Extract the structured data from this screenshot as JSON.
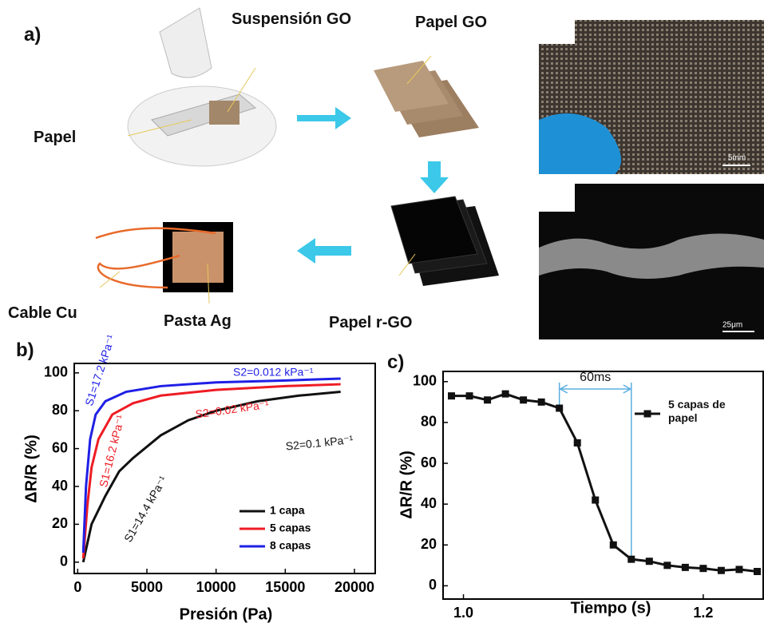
{
  "panel_a": {
    "label": "a)",
    "suspension": "Suspensión GO",
    "papel_go": "Papel GO",
    "papel": "Papel",
    "cable": "Cable Cu",
    "pasta": "Pasta Ag",
    "papel_rgo": "Papel r-GO",
    "scale_photo": "5mm",
    "scale_sem": "25μm"
  },
  "chart_data": [
    {
      "type": "line",
      "label": "b)",
      "x_label": "Presión (Pa)",
      "y_label": "ΔR/R (%)",
      "xlim": [
        -250,
        21500
      ],
      "ylim": [
        -6,
        105
      ],
      "xticks": [
        0,
        5000,
        10000,
        15000,
        20000
      ],
      "yticks": [
        0,
        20,
        40,
        60,
        80,
        100
      ],
      "legend": "lower right",
      "series": [
        {
          "name": "1 capa",
          "color": "#111111",
          "x": [
            400,
            1000,
            2000,
            3000,
            4000,
            6000,
            8000,
            10000,
            13000,
            16000,
            19000
          ],
          "values": [
            0,
            20,
            35,
            48,
            55,
            67,
            75,
            80,
            85,
            88,
            90
          ]
        },
        {
          "name": "5 capas",
          "color": "#ee1c24",
          "x": [
            400,
            700,
            1000,
            1500,
            2500,
            4000,
            6000,
            10000,
            15000,
            19000
          ],
          "values": [
            2,
            30,
            50,
            65,
            78,
            84,
            88,
            91,
            93,
            94
          ]
        },
        {
          "name": "8 capas",
          "color": "#1f1fe6",
          "x": [
            400,
            600,
            900,
            1300,
            2000,
            3500,
            6000,
            10000,
            15000,
            19000
          ],
          "values": [
            5,
            40,
            65,
            78,
            85,
            90,
            93,
            95,
            96,
            97
          ]
        }
      ],
      "annotations": [
        {
          "text": "S1=17.2 kPa⁻¹",
          "color": "#1f1fe6"
        },
        {
          "text": "S2=0.012 kPa⁻¹",
          "color": "#1f1fe6"
        },
        {
          "text": "S2=0.02 kPa⁻¹",
          "color": "#ee1c24"
        },
        {
          "text": "S1=16.2 kPa⁻¹",
          "color": "#ee1c24"
        },
        {
          "text": "S2=0.1 kPa⁻¹",
          "color": "#111111"
        },
        {
          "text": "S1=14.4 kPa⁻¹",
          "color": "#111111"
        }
      ]
    },
    {
      "type": "line",
      "label": "c)",
      "x_label": "Tiempo (s)",
      "y_label": "ΔR/R (%)",
      "xlim": [
        0.983,
        1.25
      ],
      "ylim": [
        -6.5,
        105
      ],
      "xticks": [
        {
          "value": 1,
          "label": "1.0"
        },
        1.2
      ],
      "yticks": [
        0,
        20,
        40,
        60,
        80,
        100
      ],
      "legend": "upper right",
      "marker": "square",
      "series": [
        {
          "name": "5 capas de papel",
          "color": "#111111",
          "x": [
            0.99,
            1.005,
            1.02,
            1.035,
            1.05,
            1.065,
            1.08,
            1.095,
            1.11,
            1.125,
            1.14,
            1.155,
            1.17,
            1.185,
            1.2,
            1.215,
            1.23,
            1.245
          ],
          "values": [
            93,
            93,
            91,
            94,
            91,
            90,
            87,
            70,
            42,
            20,
            13,
            12,
            10,
            9,
            8.5,
            7.5,
            8,
            7
          ]
        }
      ],
      "annotations": [
        {
          "text": "60ms",
          "color": "#111111"
        }
      ]
    }
  ]
}
